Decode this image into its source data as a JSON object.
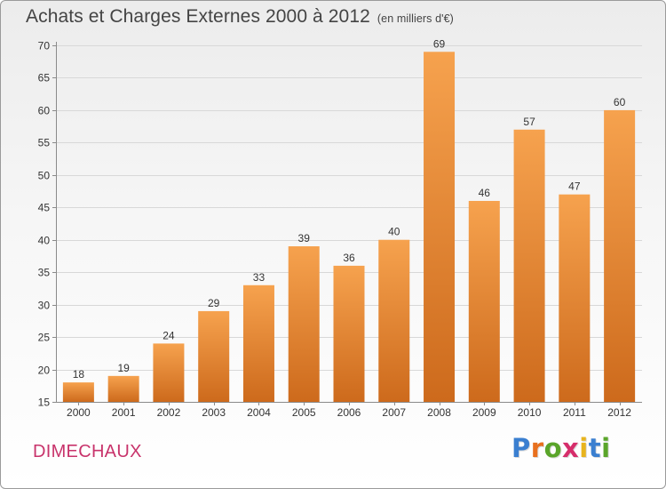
{
  "title": "Achats et Charges Externes 2000 à 2012",
  "unit": "(en milliers d'€)",
  "place": "DIMECHAUX",
  "logo": {
    "text": "Proxiti",
    "letters": [
      {
        "char": "P",
        "color": "#3a7fd0"
      },
      {
        "char": "r",
        "color": "#e8701e"
      },
      {
        "char": "o",
        "color": "#5aa52a"
      },
      {
        "char": "x",
        "color": "#d62e6b"
      },
      {
        "char": "i",
        "color": "#e8b41e"
      },
      {
        "char": "t",
        "color": "#3a7fd0"
      },
      {
        "char": "i",
        "color": "#5aa52a"
      }
    ]
  },
  "colors": {
    "bar_top": "#f6a24e",
    "bar_bottom": "#cd6a1c",
    "grid": "#d8d8d8",
    "axis": "#8a8a8a",
    "place": "#c8336b"
  },
  "chart_data": {
    "type": "bar",
    "categories": [
      "2000",
      "2001",
      "2002",
      "2003",
      "2004",
      "2005",
      "2006",
      "2007",
      "2008",
      "2009",
      "2010",
      "2011",
      "2012"
    ],
    "values": [
      18,
      19,
      24,
      29,
      33,
      39,
      36,
      40,
      69,
      46,
      57,
      47,
      60
    ],
    "ylim": [
      15,
      70
    ],
    "yticks": [
      15,
      20,
      25,
      30,
      35,
      40,
      45,
      50,
      55,
      60,
      65,
      70
    ],
    "xlabel": "",
    "ylabel": "",
    "grid": true,
    "data_labels": true
  }
}
